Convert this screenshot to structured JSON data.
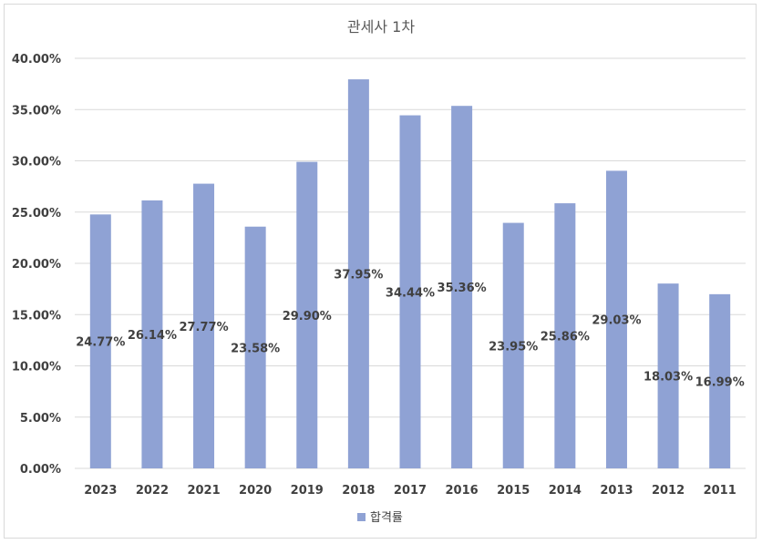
{
  "chart_data": {
    "type": "bar",
    "title": "관세사 1차",
    "categories": [
      "2023",
      "2022",
      "2021",
      "2020",
      "2019",
      "2018",
      "2017",
      "2016",
      "2015",
      "2014",
      "2013",
      "2012",
      "2011"
    ],
    "series": [
      {
        "name": "합격률",
        "values": [
          24.77,
          26.14,
          27.77,
          23.58,
          29.9,
          37.95,
          34.44,
          35.36,
          23.95,
          25.86,
          29.03,
          18.03,
          16.99
        ]
      }
    ],
    "data_labels": [
      "24.77%",
      "26.14%",
      "27.77%",
      "23.58%",
      "29.90%",
      "37.95%",
      "34.44%",
      "35.36%",
      "23.95%",
      "25.86%",
      "29.03%",
      "18.03%",
      "16.99%"
    ],
    "y_ticks": [
      "0.00%",
      "5.00%",
      "10.00%",
      "15.00%",
      "20.00%",
      "25.00%",
      "30.00%",
      "35.00%",
      "40.00%"
    ],
    "ylim": [
      0,
      40
    ],
    "grid": true,
    "legend_position": "bottom",
    "colors": {
      "bar": "#8fa2d4",
      "grid": "#d9d9d9",
      "text": "#404040"
    }
  }
}
